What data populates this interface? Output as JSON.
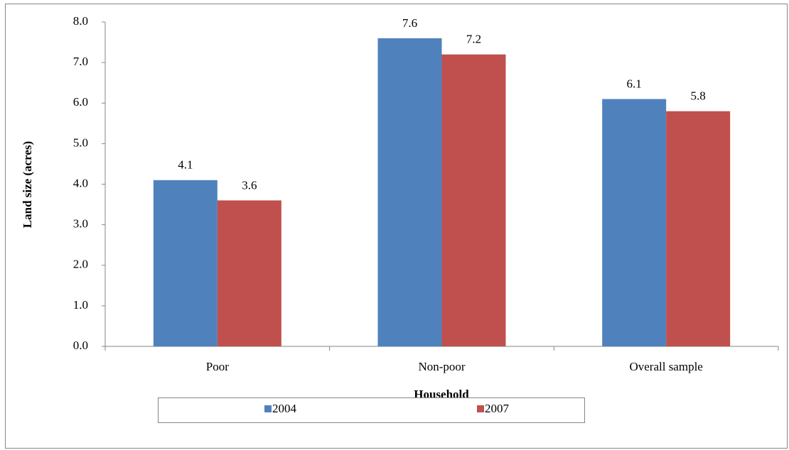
{
  "chart_data": {
    "type": "bar",
    "x_label": "Household",
    "y_label": "Land size (acres)",
    "categories": [
      "Poor",
      "Non-poor",
      "Overall sample"
    ],
    "series": [
      {
        "name": "2004",
        "color": "#4f81bd",
        "values": [
          4.1,
          7.6,
          6.1
        ]
      },
      {
        "name": "2007",
        "color": "#c0504d",
        "values": [
          3.6,
          7.2,
          5.8
        ]
      }
    ],
    "ylim": [
      0,
      8
    ],
    "yticks": [
      {
        "value": 0,
        "label": "0.0"
      },
      {
        "value": 1,
        "label": "1.0"
      },
      {
        "value": 2,
        "label": "2.0"
      },
      {
        "value": 3,
        "label": "3.0"
      },
      {
        "value": 4,
        "label": "4.0"
      },
      {
        "value": 5,
        "label": "5.0"
      },
      {
        "value": 6,
        "label": "6.0"
      },
      {
        "value": 7,
        "label": "7.0"
      },
      {
        "value": 8,
        "label": "8.0"
      }
    ],
    "grid": false,
    "legend": "bottom"
  }
}
